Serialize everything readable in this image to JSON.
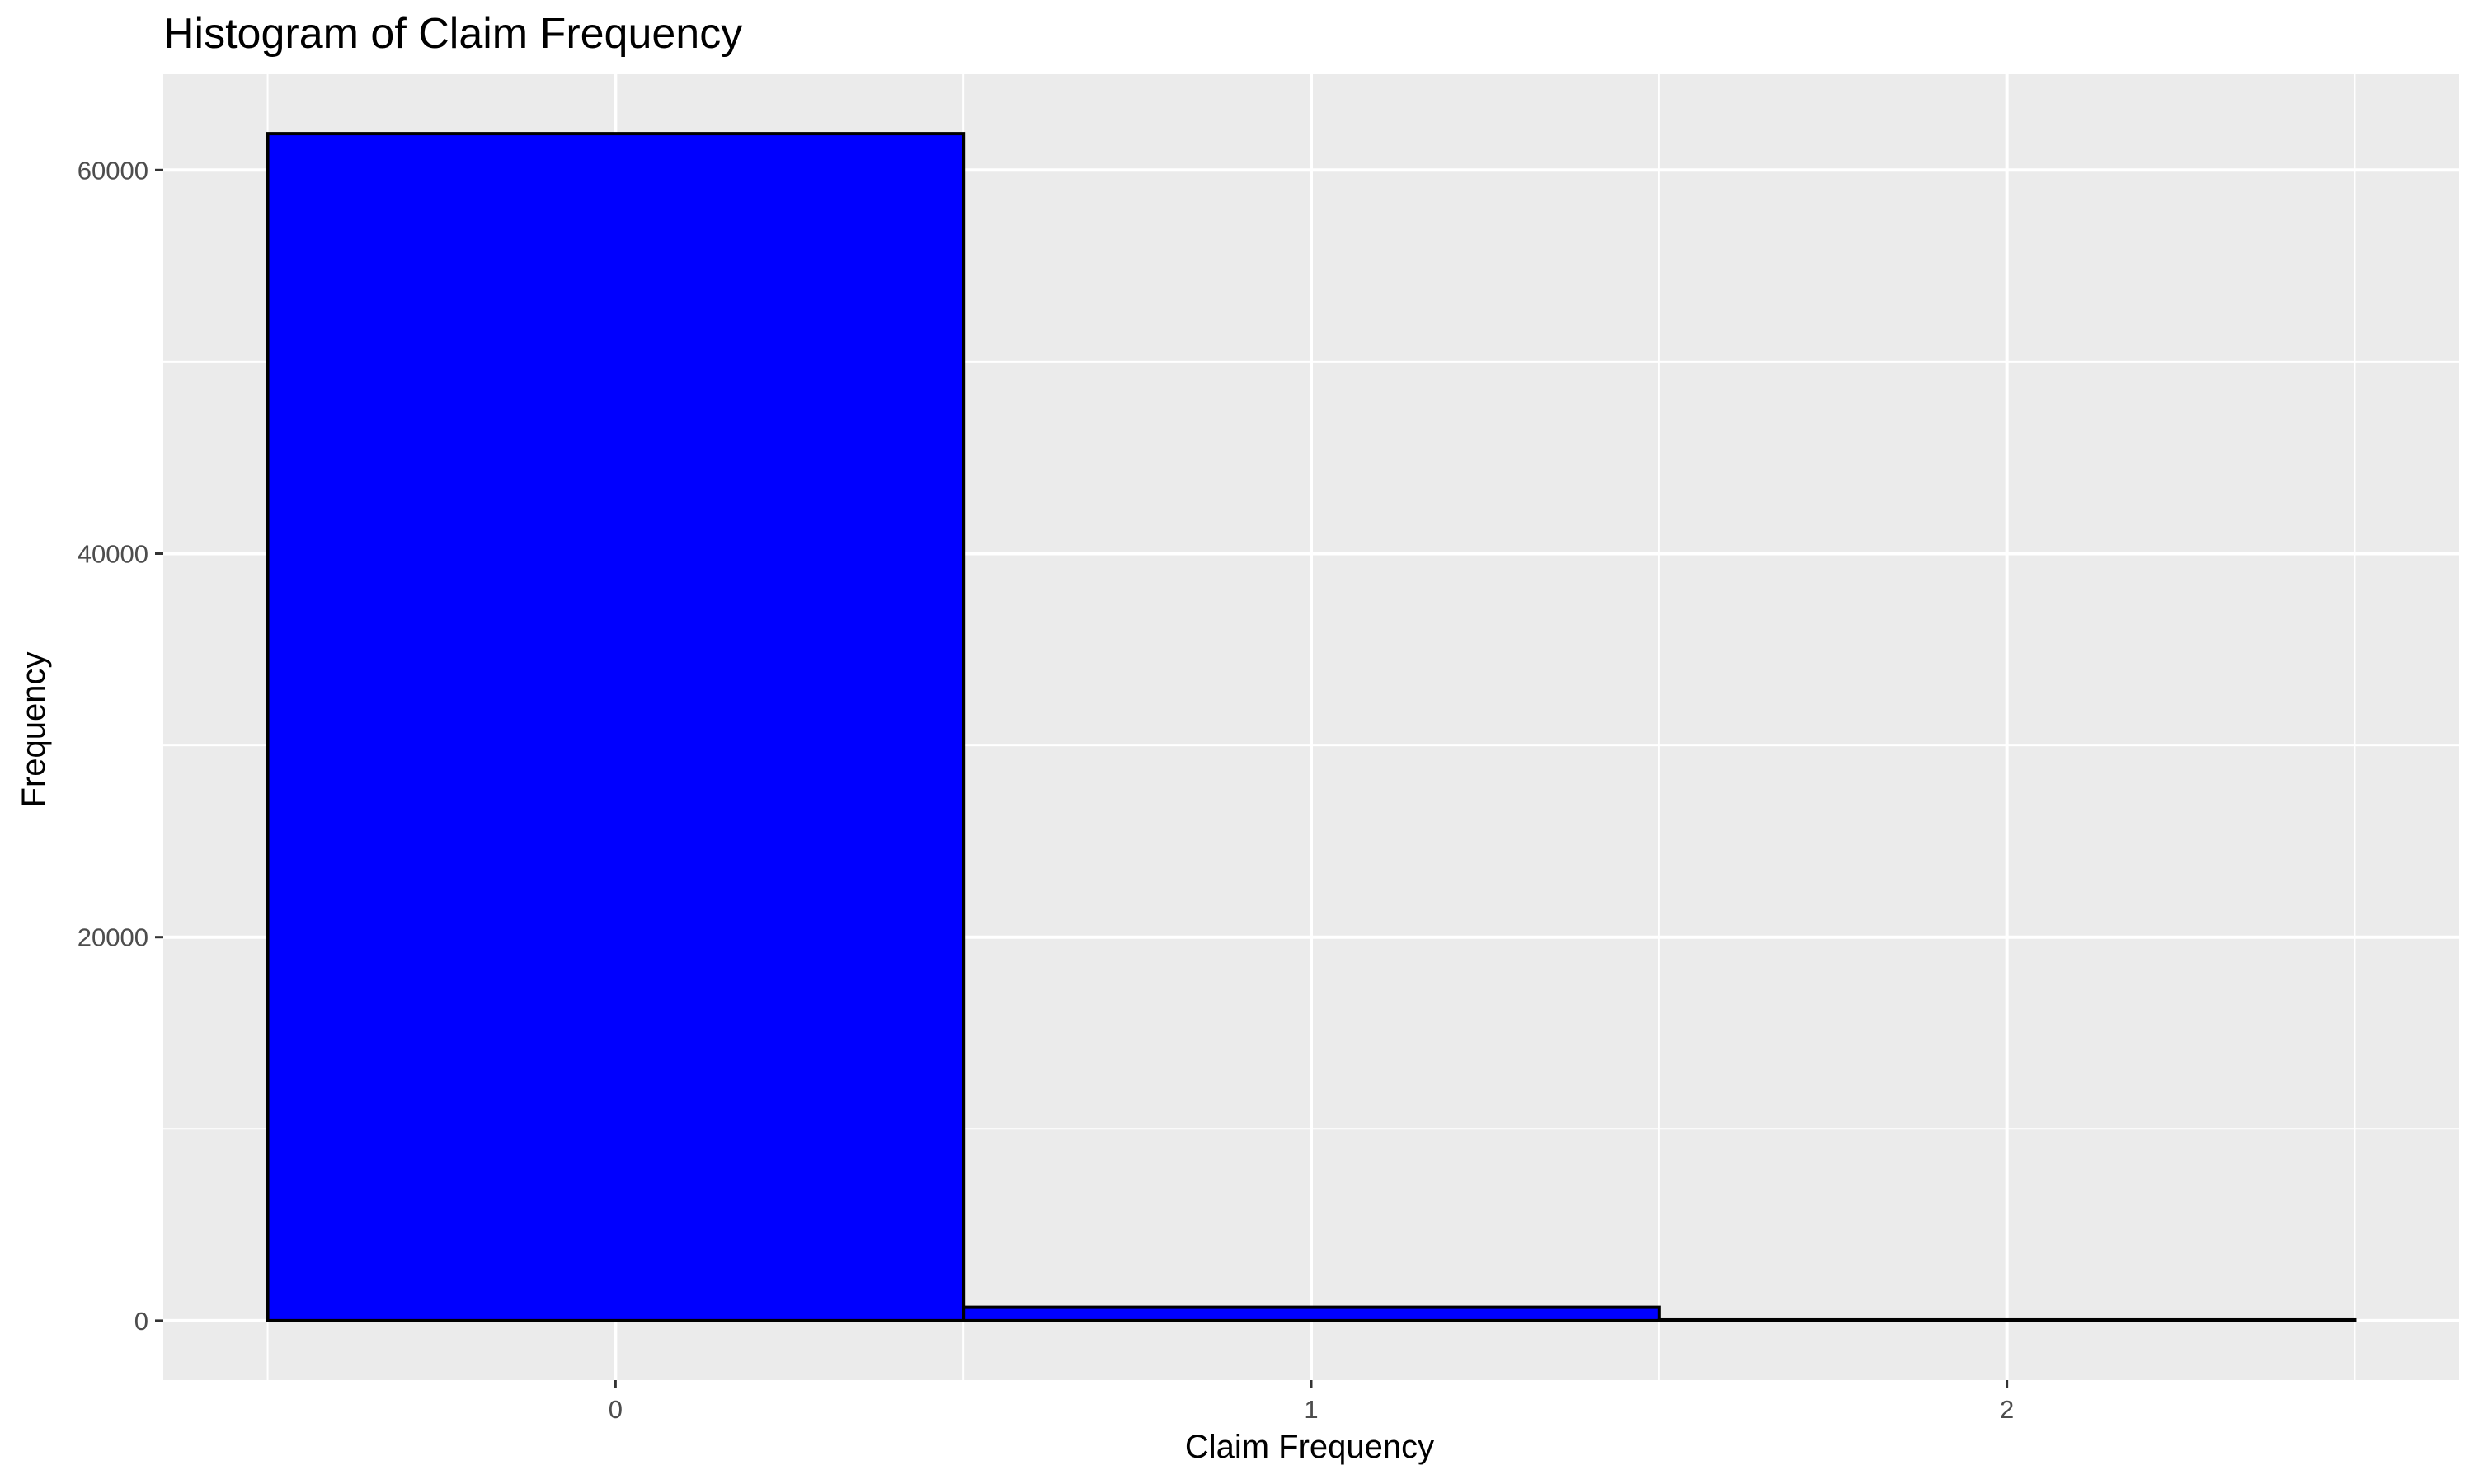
{
  "chart_data": {
    "type": "bar",
    "title": "Histogram of Claim Frequency",
    "xlabel": "Claim Frequency",
    "ylabel": "Frequency",
    "categories": [
      "0",
      "1",
      "2"
    ],
    "values": [
      61900,
      700,
      40
    ],
    "bin_width": 1,
    "xlim": [
      -0.65,
      2.65
    ],
    "ylim": [
      -3100,
      65000
    ],
    "x_ticks": [
      0,
      1,
      2
    ],
    "y_ticks": [
      0,
      20000,
      40000,
      60000
    ],
    "y_minor_ticks": [
      10000,
      30000,
      50000
    ],
    "grid": true,
    "legend": "none",
    "colors": {
      "bar_fill": "#0000ff",
      "bar_stroke": "#000000",
      "panel_background": "#ebebeb",
      "grid": "#ffffff"
    }
  }
}
